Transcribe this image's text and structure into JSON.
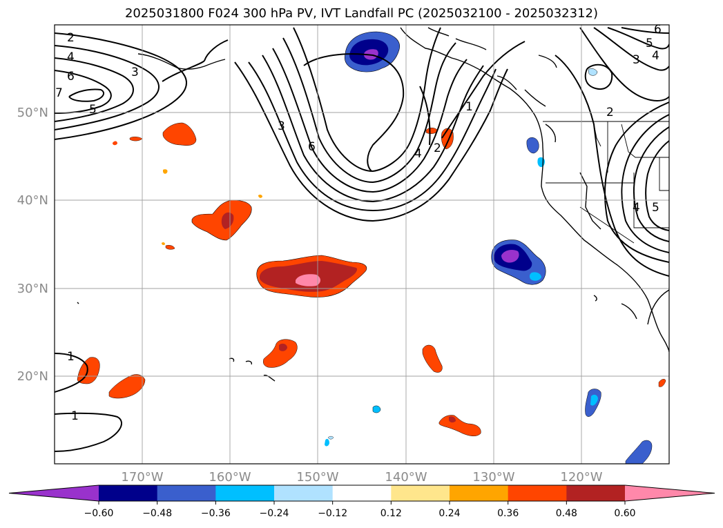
{
  "title": "2025031800 F024 300 hPa PV, IVT Landfall PC (2025032100 - 2025032312)",
  "map": {
    "projection": "PlateCarree",
    "extent": {
      "lon_min": -180,
      "lon_max": -110,
      "lat_min": 10,
      "lat_max": 60
    },
    "gridlines": true,
    "lon_ticks": [
      {
        "lon": -170,
        "label": "170°W"
      },
      {
        "lon": -160,
        "label": "160°W"
      },
      {
        "lon": -150,
        "label": "150°W"
      },
      {
        "lon": -140,
        "label": "140°W"
      },
      {
        "lon": -130,
        "label": "130°W"
      },
      {
        "lon": -120,
        "label": "120°W"
      }
    ],
    "lat_ticks": [
      {
        "lat": 50,
        "label": "50°N"
      },
      {
        "lat": 40,
        "label": "40°N"
      },
      {
        "lat": 30,
        "label": "30°N"
      },
      {
        "lat": 20,
        "label": "20°N"
      }
    ],
    "pv_contours": {
      "color": "#000000",
      "levels": [
        1,
        2,
        3,
        4,
        5,
        6,
        7
      ],
      "labels": [
        "2",
        "4",
        "6",
        "3",
        "5",
        "7",
        "3",
        "6",
        "4",
        "2",
        "1",
        "6",
        "5",
        "4",
        "3",
        "2",
        "4",
        "5",
        "1",
        "1"
      ]
    },
    "ivt_pc_shading": [
      {
        "region": "Gulf of Alaska",
        "sign": "negative",
        "peak": -0.66
      },
      {
        "region": "Offshore California",
        "sign": "negative",
        "peak": -0.66
      },
      {
        "region": "Central North Pacific",
        "sign": "positive",
        "peak": 0.66
      },
      {
        "region": "North of Hawaii",
        "sign": "positive",
        "peak": 0.5
      },
      {
        "region": "Aleutians south",
        "sign": "positive",
        "peak": 0.4
      },
      {
        "region": "Off Oregon coast",
        "sign": "negative",
        "peak": -0.3
      },
      {
        "region": "Baja California",
        "sign": "negative",
        "peak": -0.45
      },
      {
        "region": "Subtropics",
        "sign": "positive",
        "peak": 0.45
      }
    ]
  },
  "colorbar": {
    "ticks": [
      "−0.60",
      "−0.48",
      "−0.36",
      "−0.24",
      "−0.12",
      "0.12",
      "0.24",
      "0.36",
      "0.48",
      "0.60"
    ],
    "colors": [
      "#9932cc",
      "#00008b",
      "#3a5fcd",
      "#00bfff",
      "#b0e2ff",
      "#ffffff",
      "#ffe68c",
      "#ffa500",
      "#ff4500",
      "#b22222",
      "#ff88aa"
    ],
    "extend": "both"
  }
}
